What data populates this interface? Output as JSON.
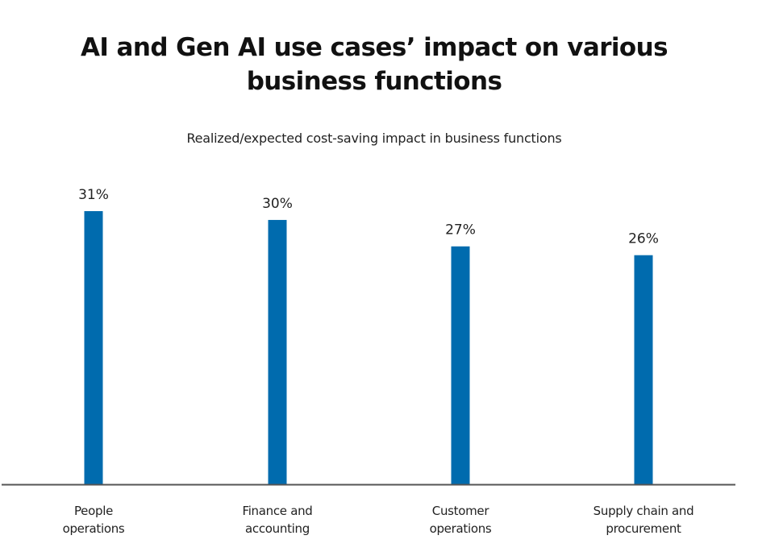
{
  "chart_data": {
    "type": "bar",
    "title": "AI and Gen AI use cases’ impact on various business functions",
    "title_lines": [
      "AI and Gen AI use cases’ impact on various",
      "business functions"
    ],
    "subtitle": "Realized/expected cost-saving impact in business functions",
    "categories": [
      "People operations",
      "Finance and accounting",
      "Customer operations",
      "Supply chain and procurement"
    ],
    "category_lines": [
      [
        "People",
        "operations"
      ],
      [
        "Finance and",
        "accounting"
      ],
      [
        "Customer",
        "operations"
      ],
      [
        "Supply chain and",
        "procurement"
      ]
    ],
    "values": [
      31,
      30,
      27,
      26
    ],
    "data_labels": [
      "31%",
      "30%",
      "27%",
      "26%"
    ],
    "unit": "%",
    "xlabel": "",
    "ylabel": "",
    "ylim": [
      0,
      31
    ],
    "grid": false,
    "legend": "none",
    "bar_color": "#006BAE",
    "axis_color": "#555555"
  }
}
